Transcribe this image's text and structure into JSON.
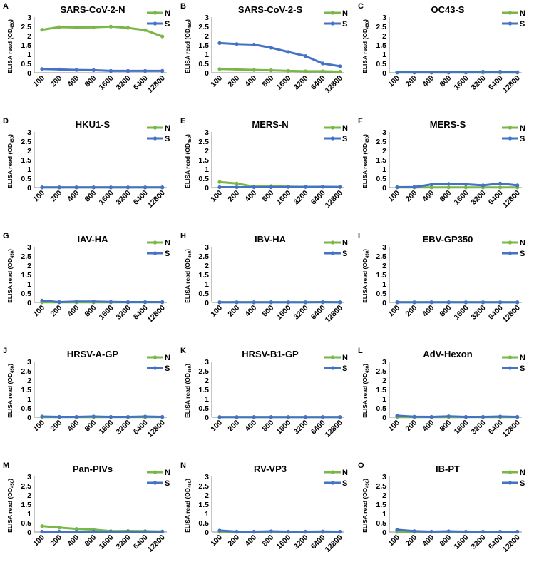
{
  "figure": {
    "ylabel": "ELISA read (OD",
    "ylabel_sub": "450",
    "ylabel_close": ")"
  },
  "colors": {
    "N": "#7ab648",
    "S": "#4472c4"
  },
  "chart_data": [
    {
      "type": "line",
      "letter": "A",
      "title": "SARS-CoV-2-N",
      "categories": [
        "100",
        "200",
        "400",
        "800",
        "1600",
        "3200",
        "6400",
        "12800"
      ],
      "yticks": [
        "0",
        "0.5",
        "1",
        "1.5",
        "2",
        "2.5",
        "3"
      ],
      "ylim": [
        0,
        3
      ],
      "series": [
        {
          "name": "N",
          "values": [
            2.32,
            2.46,
            2.44,
            2.45,
            2.49,
            2.42,
            2.3,
            1.96
          ]
        },
        {
          "name": "S",
          "values": [
            0.2,
            0.18,
            0.15,
            0.14,
            0.1,
            0.1,
            0.1,
            0.1
          ]
        }
      ]
    },
    {
      "type": "line",
      "letter": "B",
      "title": "SARS-CoV-2-S",
      "categories": [
        "100",
        "200",
        "400",
        "800",
        "1600",
        "3200",
        "6400",
        "12800"
      ],
      "yticks": [
        "0",
        "0.5",
        "1",
        "1.5",
        "2",
        "2.5",
        "3"
      ],
      "ylim": [
        0,
        3
      ],
      "series": [
        {
          "name": "N",
          "values": [
            0.2,
            0.18,
            0.15,
            0.13,
            0.1,
            0.08,
            0.08,
            0.06
          ]
        },
        {
          "name": "S",
          "values": [
            1.6,
            1.55,
            1.52,
            1.35,
            1.12,
            0.9,
            0.5,
            0.35
          ]
        }
      ]
    },
    {
      "type": "line",
      "letter": "C",
      "title": "OC43-S",
      "categories": [
        "100",
        "200",
        "400",
        "800",
        "1600",
        "3200",
        "6400",
        "12800"
      ],
      "yticks": [
        "0",
        "0.5",
        "1",
        "1.5",
        "2",
        "2.5",
        "3"
      ],
      "ylim": [
        0,
        3
      ],
      "series": [
        {
          "name": "N",
          "values": [
            0.01,
            0.01,
            0.01,
            0.01,
            0.01,
            0.01,
            0.01,
            0.01
          ]
        },
        {
          "name": "S",
          "values": [
            0.02,
            0.02,
            0.02,
            0.02,
            0.02,
            0.06,
            0.06,
            0.03
          ]
        }
      ]
    },
    {
      "type": "line",
      "letter": "D",
      "title": "HKU1-S",
      "categories": [
        "100",
        "200",
        "400",
        "800",
        "1600",
        "3200",
        "6400",
        "12800"
      ],
      "yticks": [
        "0",
        "0.5",
        "1",
        "1.5",
        "2",
        "2.5",
        "3"
      ],
      "ylim": [
        0,
        3
      ],
      "series": [
        {
          "name": "N",
          "values": [
            0.01,
            0.01,
            0.01,
            0.01,
            0.01,
            0.01,
            0.01,
            0.01
          ]
        },
        {
          "name": "S",
          "values": [
            0.01,
            0.01,
            0.01,
            0.01,
            0.01,
            0.01,
            0.01,
            0.01
          ]
        }
      ]
    },
    {
      "type": "line",
      "letter": "E",
      "title": "MERS-N",
      "categories": [
        "100",
        "200",
        "400",
        "800",
        "1600",
        "3200",
        "6400",
        "12800"
      ],
      "yticks": [
        "0",
        "0.5",
        "1",
        "1.5",
        "2",
        "2.5",
        "3"
      ],
      "ylim": [
        0,
        3
      ],
      "series": [
        {
          "name": "N",
          "values": [
            0.3,
            0.22,
            0.05,
            0.08,
            0.05,
            0.04,
            0.04,
            0.03
          ]
        },
        {
          "name": "S",
          "values": [
            0.02,
            0.02,
            0.02,
            0.02,
            0.03,
            0.03,
            0.04,
            0.03
          ]
        }
      ]
    },
    {
      "type": "line",
      "letter": "F",
      "title": "MERS-S",
      "categories": [
        "100",
        "200",
        "400",
        "800",
        "1600",
        "3200",
        "6400",
        "12800"
      ],
      "yticks": [
        "0",
        "0.5",
        "1",
        "1.5",
        "2",
        "2.5",
        "3"
      ],
      "ylim": [
        0,
        3
      ],
      "series": [
        {
          "name": "N",
          "values": [
            0.01,
            0.01,
            0.01,
            0.01,
            0.01,
            0.01,
            0.01,
            0.01
          ]
        },
        {
          "name": "S",
          "values": [
            0.02,
            0.03,
            0.17,
            0.2,
            0.18,
            0.12,
            0.22,
            0.12
          ]
        }
      ]
    },
    {
      "type": "line",
      "letter": "G",
      "title": "IAV-HA",
      "categories": [
        "100",
        "200",
        "400",
        "800",
        "1600",
        "3200",
        "6400",
        "12800"
      ],
      "yticks": [
        "0",
        "0.5",
        "1",
        "1.5",
        "2",
        "2.5",
        "3"
      ],
      "ylim": [
        0,
        3
      ],
      "series": [
        {
          "name": "N",
          "values": [
            0.01,
            0.01,
            0.01,
            0.01,
            0.01,
            0.01,
            0.01,
            0.01
          ]
        },
        {
          "name": "S",
          "values": [
            0.1,
            0.02,
            0.05,
            0.05,
            0.03,
            0.02,
            0.02,
            0.02
          ]
        }
      ]
    },
    {
      "type": "line",
      "letter": "H",
      "title": "IBV-HA",
      "categories": [
        "100",
        "200",
        "400",
        "800",
        "1600",
        "3200",
        "6400",
        "12800"
      ],
      "yticks": [
        "0",
        "0.5",
        "1",
        "1.5",
        "2",
        "2.5",
        "3"
      ],
      "ylim": [
        0,
        3
      ],
      "series": [
        {
          "name": "N",
          "values": [
            0.01,
            0.01,
            0.01,
            0.01,
            0.01,
            0.01,
            0.01,
            0.01
          ]
        },
        {
          "name": "S",
          "values": [
            0.01,
            0.01,
            0.01,
            0.01,
            0.01,
            0.01,
            0.02,
            0.01
          ]
        }
      ]
    },
    {
      "type": "line",
      "letter": "I",
      "title": "EBV-GP350",
      "categories": [
        "100",
        "200",
        "400",
        "800",
        "1600",
        "3200",
        "6400",
        "12800"
      ],
      "yticks": [
        "0",
        "0.5",
        "1",
        "1.5",
        "2",
        "2.5",
        "3"
      ],
      "ylim": [
        0,
        3
      ],
      "series": [
        {
          "name": "N",
          "values": [
            0.01,
            0.01,
            0.01,
            0.01,
            0.01,
            0.01,
            0.01,
            0.01
          ]
        },
        {
          "name": "S",
          "values": [
            0.01,
            0.01,
            0.01,
            0.01,
            0.01,
            0.01,
            0.01,
            0.01
          ]
        }
      ]
    },
    {
      "type": "line",
      "letter": "J",
      "title": "HRSV-A-GP",
      "categories": [
        "100",
        "200",
        "400",
        "800",
        "1600",
        "3200",
        "6400",
        "12800"
      ],
      "yticks": [
        "0",
        "0.5",
        "1",
        "1.5",
        "2",
        "2.5",
        "3"
      ],
      "ylim": [
        0,
        3
      ],
      "series": [
        {
          "name": "N",
          "values": [
            0.01,
            0.01,
            0.01,
            0.01,
            0.01,
            0.01,
            0.01,
            0.01
          ]
        },
        {
          "name": "S",
          "values": [
            0.04,
            0.02,
            0.02,
            0.04,
            0.02,
            0.02,
            0.04,
            0.02
          ]
        }
      ]
    },
    {
      "type": "line",
      "letter": "K",
      "title": "HRSV-B1-GP",
      "categories": [
        "100",
        "200",
        "400",
        "800",
        "1600",
        "3200",
        "6400",
        "12800"
      ],
      "yticks": [
        "0",
        "0.5",
        "1",
        "1.5",
        "2",
        "2.5",
        "3"
      ],
      "ylim": [
        0,
        3
      ],
      "series": [
        {
          "name": "N",
          "values": [
            0.01,
            0.01,
            0.01,
            0.01,
            0.01,
            0.01,
            0.01,
            0.01
          ]
        },
        {
          "name": "S",
          "values": [
            0.01,
            0.01,
            0.01,
            0.01,
            0.01,
            0.01,
            0.01,
            0.01
          ]
        }
      ]
    },
    {
      "type": "line",
      "letter": "L",
      "title": "AdV-Hexon",
      "categories": [
        "100",
        "200",
        "400",
        "800",
        "1600",
        "3200",
        "6400",
        "12800"
      ],
      "yticks": [
        "0",
        "0.5",
        "1",
        "1.5",
        "2",
        "2.5",
        "3"
      ],
      "ylim": [
        0,
        3
      ],
      "series": [
        {
          "name": "N",
          "values": [
            0.01,
            0.01,
            0.01,
            0.01,
            0.01,
            0.01,
            0.01,
            0.01
          ]
        },
        {
          "name": "S",
          "values": [
            0.08,
            0.03,
            0.02,
            0.05,
            0.02,
            0.02,
            0.04,
            0.02
          ]
        }
      ]
    },
    {
      "type": "line",
      "letter": "M",
      "title": "Pan-PIVs",
      "categories": [
        "100",
        "200",
        "400",
        "800",
        "1600",
        "3200",
        "6400",
        "12800"
      ],
      "yticks": [
        "0",
        "0.5",
        "1",
        "1.5",
        "2",
        "2.5",
        "3"
      ],
      "ylim": [
        0,
        3
      ],
      "series": [
        {
          "name": "N",
          "values": [
            0.32,
            0.24,
            0.17,
            0.13,
            0.05,
            0.06,
            0.05,
            0.03
          ]
        },
        {
          "name": "S",
          "values": [
            0.02,
            0.02,
            0.02,
            0.02,
            0.02,
            0.02,
            0.02,
            0.02
          ]
        }
      ]
    },
    {
      "type": "line",
      "letter": "N",
      "title": "RV-VP3",
      "categories": [
        "100",
        "200",
        "400",
        "800",
        "1600",
        "3200",
        "6400",
        "12800"
      ],
      "yticks": [
        "0",
        "0.5",
        "1",
        "1.5",
        "2",
        "2.5",
        "3"
      ],
      "ylim": [
        0,
        3
      ],
      "series": [
        {
          "name": "N",
          "values": [
            0.01,
            0.01,
            0.01,
            0.01,
            0.01,
            0.01,
            0.01,
            0.01
          ]
        },
        {
          "name": "S",
          "values": [
            0.08,
            0.02,
            0.02,
            0.04,
            0.02,
            0.02,
            0.03,
            0.02
          ]
        }
      ]
    },
    {
      "type": "line",
      "letter": "O",
      "title": "IB-PT",
      "categories": [
        "100",
        "200",
        "400",
        "800",
        "1600",
        "3200",
        "6400",
        "12800"
      ],
      "yticks": [
        "0",
        "0.5",
        "1",
        "1.5",
        "2",
        "2.5",
        "3"
      ],
      "ylim": [
        0,
        3
      ],
      "series": [
        {
          "name": "N",
          "values": [
            0.01,
            0.01,
            0.01,
            0.01,
            0.01,
            0.01,
            0.01,
            0.01
          ]
        },
        {
          "name": "S",
          "values": [
            0.12,
            0.05,
            0.02,
            0.04,
            0.02,
            0.02,
            0.02,
            0.02
          ]
        }
      ]
    }
  ]
}
